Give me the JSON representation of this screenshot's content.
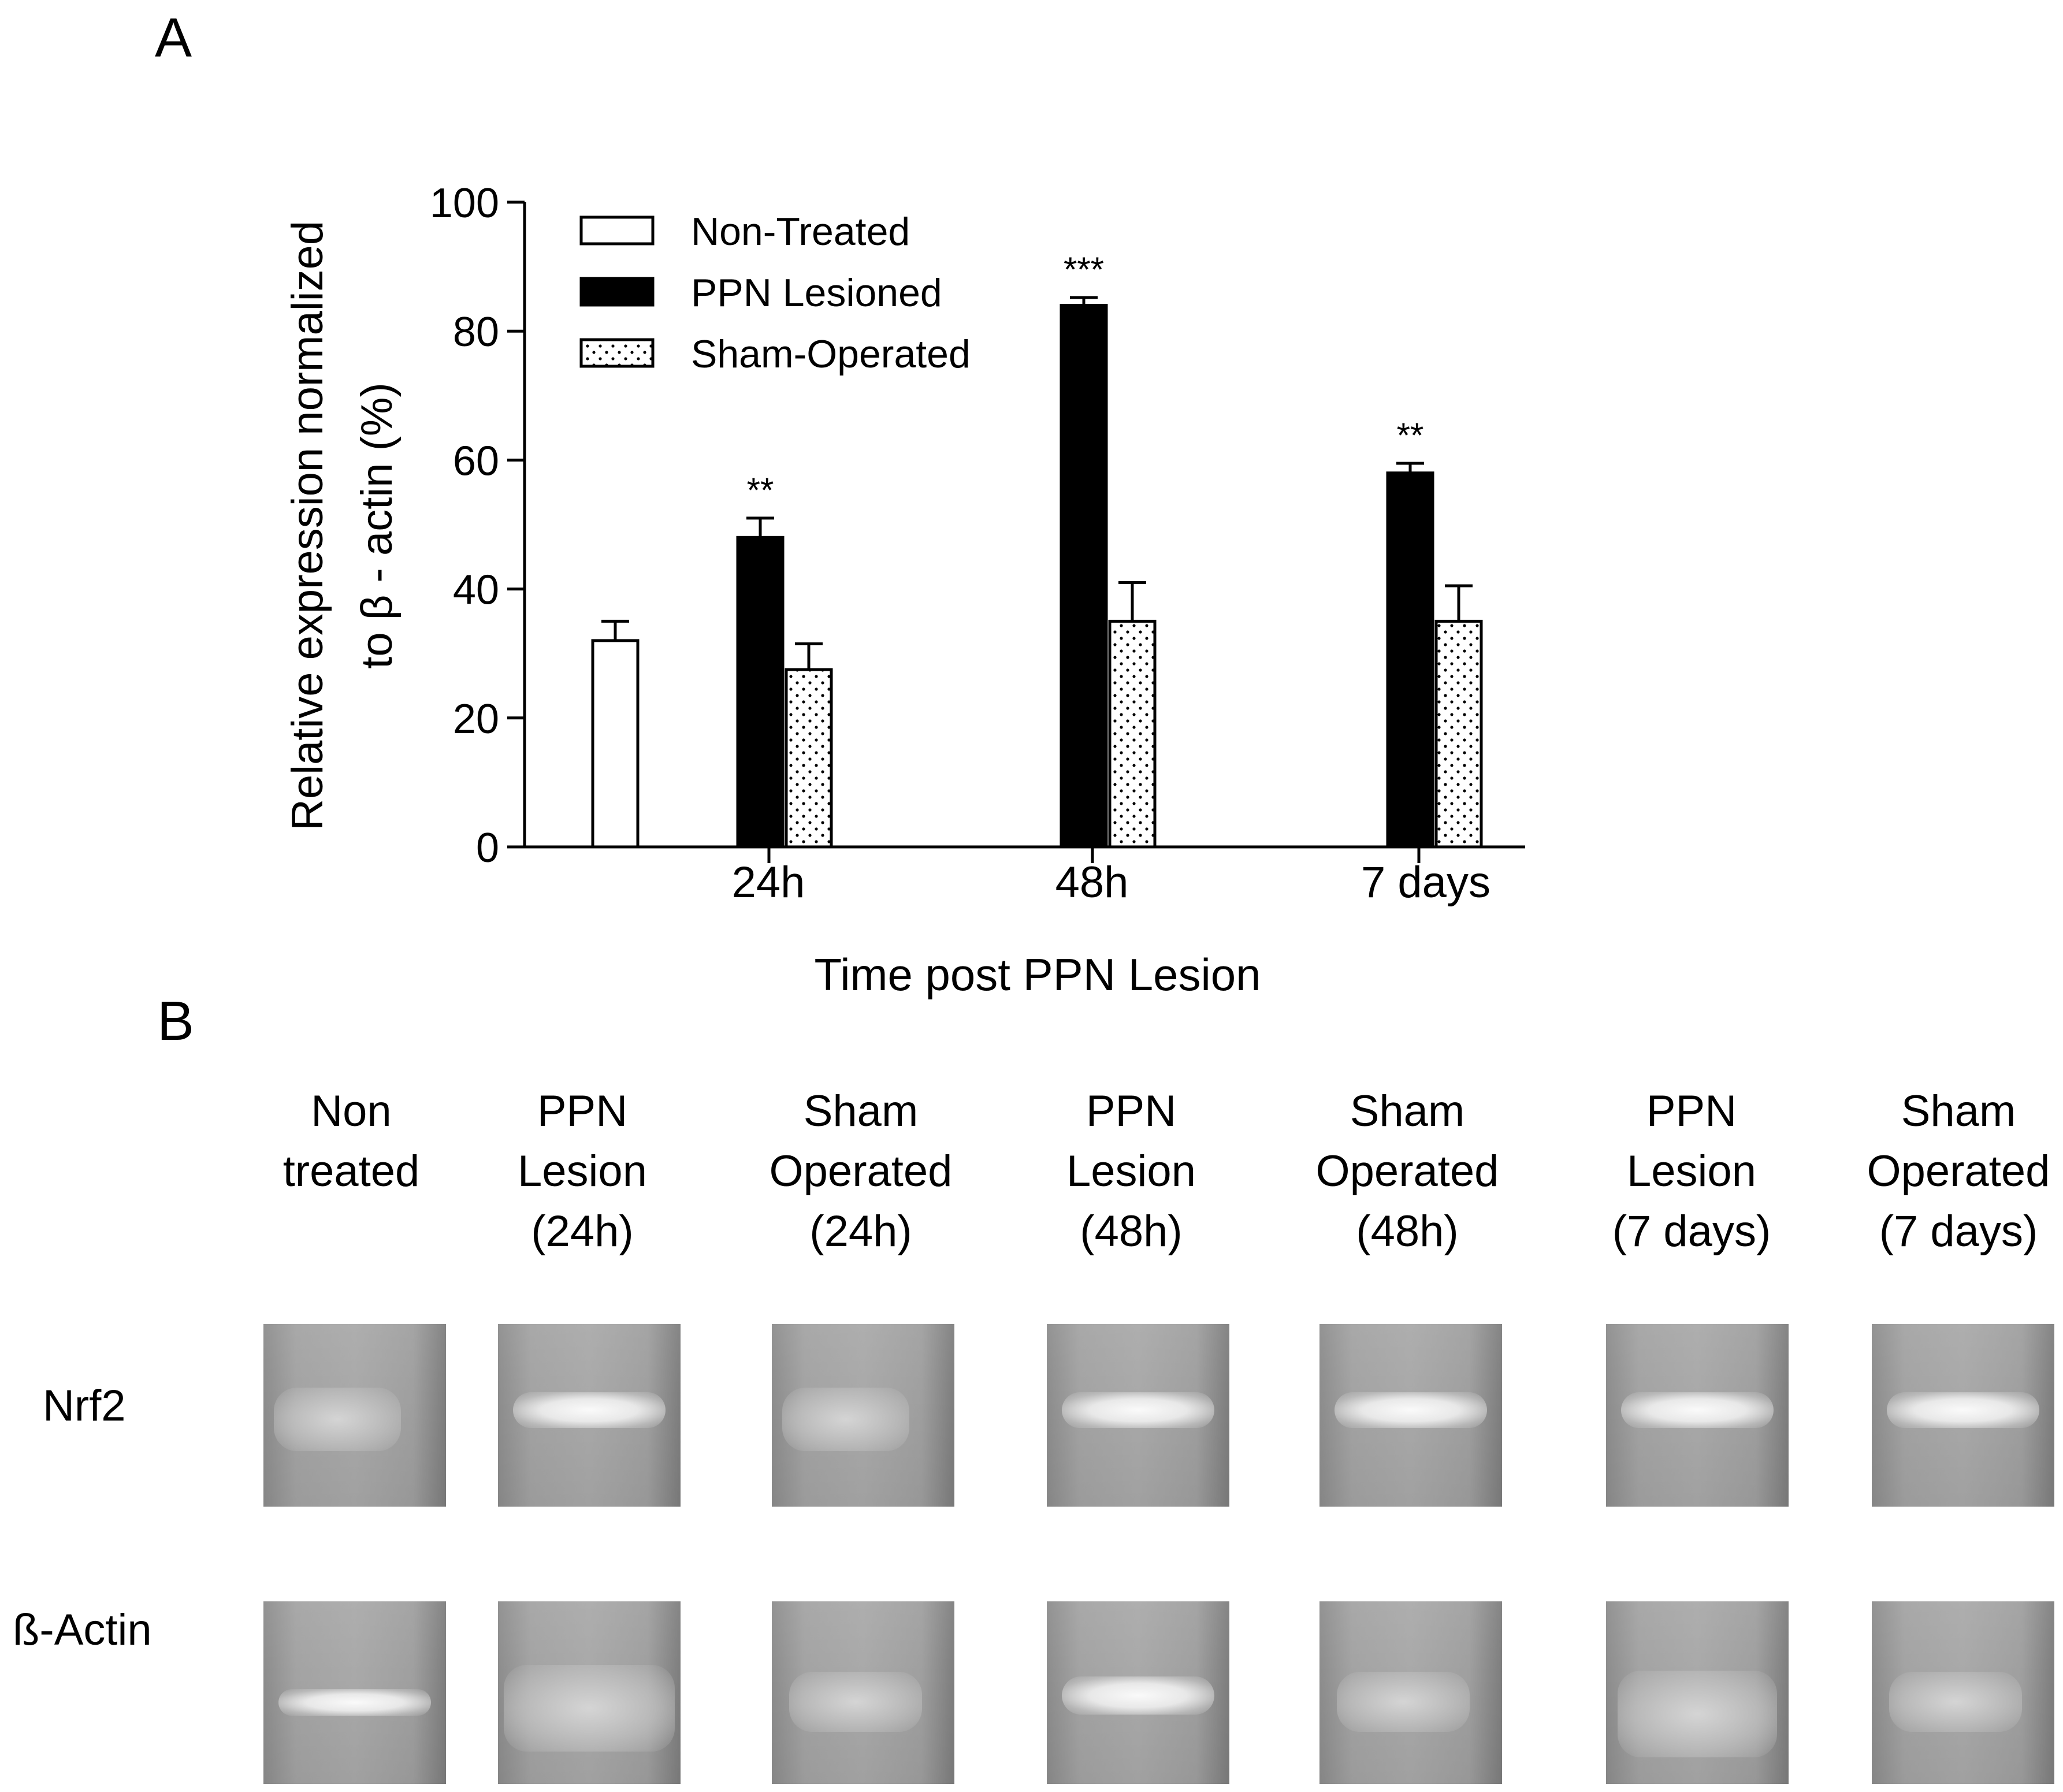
{
  "panel_a": {
    "label": "A",
    "chart_data": {
      "type": "bar",
      "title": "",
      "ylabel_line1": "Relative expression normalized",
      "ylabel_line2": "to β - actin (%)",
      "xlabel": "Time post PPN Lesion",
      "ylim": [
        0,
        100
      ],
      "yticks": [
        0,
        20,
        40,
        60,
        80,
        100
      ],
      "categories": [
        "",
        "24h",
        "48h",
        "7 days"
      ],
      "series": [
        {
          "name": "Non-Treated",
          "fill": "white",
          "values": [
            32,
            null,
            null,
            null
          ],
          "errors": [
            3,
            null,
            null,
            null
          ],
          "sig": [
            "",
            "",
            "",
            ""
          ]
        },
        {
          "name": "PPN Lesioned",
          "fill": "black",
          "values": [
            null,
            48,
            84,
            58
          ],
          "errors": [
            null,
            3,
            1.2,
            1.5
          ],
          "sig": [
            "",
            "**",
            "***",
            "**"
          ]
        },
        {
          "name": "Sham-Operated",
          "fill": "dotted",
          "values": [
            null,
            27.5,
            35,
            35
          ],
          "errors": [
            null,
            4,
            6,
            5.5
          ],
          "sig": [
            "",
            "",
            "",
            ""
          ]
        }
      ],
      "legend_position": "top-left"
    }
  },
  "panel_b": {
    "label": "B",
    "lanes": [
      {
        "lines": [
          "Non",
          "treated"
        ],
        "nrf2": "diffuse",
        "actin": "sharp-thin"
      },
      {
        "lines": [
          "PPN",
          "Lesion",
          "(24h)"
        ],
        "nrf2": "sharp",
        "actin": "diffuse-wide"
      },
      {
        "lines": [
          "Sham",
          "Operated",
          "(24h)"
        ],
        "nrf2": "diffuse",
        "actin": "medium"
      },
      {
        "lines": [
          "PPN",
          "Lesion",
          "(48h)"
        ],
        "nrf2": "sharp",
        "actin": "sharp"
      },
      {
        "lines": [
          "Sham",
          "Operated",
          "(48h)"
        ],
        "nrf2": "sharp",
        "actin": "medium"
      },
      {
        "lines": [
          "PPN",
          "Lesion",
          "(7 days)"
        ],
        "nrf2": "sharp",
        "actin": "faint"
      },
      {
        "lines": [
          "Sham",
          "Operated",
          "(7 days)"
        ],
        "nrf2": "sharp",
        "actin": "medium"
      }
    ],
    "rows": {
      "nrf2_label": "Nrf2",
      "actin_label": "ß-Actin"
    }
  }
}
